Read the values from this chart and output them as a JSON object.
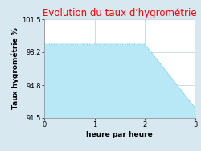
{
  "title": "Evolution du taux d'hygrométrie",
  "title_color": "#ff0000",
  "xlabel": "heure par heure",
  "ylabel": "Taux hygrométrie %",
  "x": [
    0,
    0.5,
    2.0,
    3.0
  ],
  "y": [
    99.0,
    99.0,
    99.0,
    92.5
  ],
  "ylim": [
    91.5,
    101.5
  ],
  "xlim": [
    0,
    3
  ],
  "yticks": [
    91.5,
    94.8,
    98.2,
    101.5
  ],
  "xticks": [
    0,
    1,
    2,
    3
  ],
  "line_color": "#7dd4ea",
  "fill_color": "#b8e8f5",
  "fill_alpha": 1.0,
  "bg_color": "#d8e8f0",
  "plot_bg_color": "#ffffff",
  "grid_color": "#bbccdd",
  "title_fontsize": 8.5,
  "label_fontsize": 6.5,
  "tick_fontsize": 6
}
